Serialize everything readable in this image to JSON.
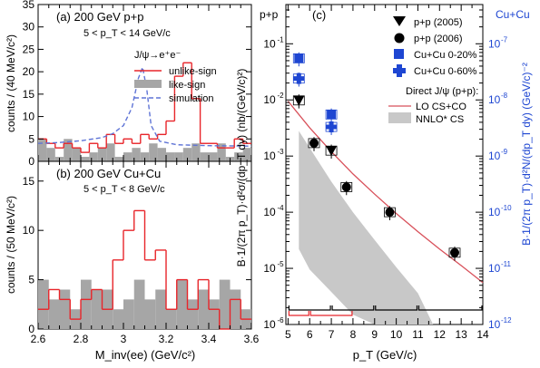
{
  "chart_data": [
    {
      "id": "a",
      "type": "bar",
      "panel_label": "(a) 200 GeV p+p",
      "subtitle": "5 < p_T < 14 GeV/c",
      "legend_title": "J/ψ→e⁺e⁻",
      "ylabel": "counts / (40 MeV/c²)",
      "xlim": [
        2.6,
        3.6
      ],
      "ylim": [
        0,
        35
      ],
      "yticks": [
        0,
        5,
        10,
        15,
        20,
        25,
        30,
        35
      ],
      "series": [
        {
          "name": "unlike-sign",
          "color": "#e8252a",
          "style": "step",
          "bin_edges_start": 2.6,
          "bin_width": 0.04,
          "values": [
            5,
            4,
            3,
            4,
            3,
            2,
            4,
            3,
            6,
            4,
            5,
            4,
            6,
            5,
            6,
            9,
            19,
            22,
            14,
            4,
            4,
            3,
            3,
            5,
            4
          ]
        },
        {
          "name": "like-sign",
          "color": "#a6a6a6",
          "style": "filled",
          "bin_edges_start": 2.6,
          "bin_width": 0.04,
          "values": [
            5,
            3,
            1,
            5,
            3,
            1,
            2,
            3,
            4,
            1,
            2,
            3,
            2,
            4,
            3,
            2,
            2,
            3,
            4,
            2,
            2,
            4,
            1,
            2,
            3
          ]
        },
        {
          "name": "simulation",
          "color": "#5f74d6",
          "style": "dashed",
          "x": [
            2.6,
            2.7,
            2.8,
            2.9,
            2.95,
            3.0,
            3.04,
            3.07,
            3.09,
            3.11,
            3.13,
            3.17,
            3.25,
            3.4,
            3.6
          ],
          "y": [
            4,
            4.2,
            4.6,
            5.3,
            6.2,
            8,
            12,
            18.5,
            21,
            16,
            8,
            4.5,
            3.7,
            3.5,
            3.4
          ]
        }
      ]
    },
    {
      "id": "b",
      "type": "bar",
      "panel_label": "(b) 200 GeV Cu+Cu",
      "subtitle": "5 < p_T < 8 GeV/c",
      "ylabel": "counts / (50 MeV/c²)",
      "xlabel": "M_inv(ee) (GeV/c²)",
      "xlim": [
        2.6,
        3.6
      ],
      "ylim": [
        0,
        17
      ],
      "yticks": [
        0,
        5,
        10,
        15
      ],
      "xticks": [
        2.6,
        2.8,
        3,
        3.2,
        3.4,
        3.6
      ],
      "series": [
        {
          "name": "unlike-sign",
          "color": "#e8252a",
          "style": "step",
          "bin_edges_start": 2.6,
          "bin_width": 0.05,
          "values": [
            2,
            4,
            3,
            1,
            3,
            4,
            2,
            7,
            10,
            12,
            7,
            8,
            2,
            5,
            2,
            5,
            2,
            0,
            3,
            1
          ]
        },
        {
          "name": "like-sign",
          "color": "#a6a6a6",
          "style": "filled",
          "bin_edges_start": 2.6,
          "bin_width": 0.05,
          "values": [
            5,
            3,
            4,
            2,
            5,
            4,
            4,
            2,
            3,
            5,
            3,
            4,
            2,
            5,
            3,
            4,
            3,
            5,
            4,
            2
          ]
        }
      ]
    },
    {
      "id": "c",
      "type": "scatter",
      "panel_label": "(c)",
      "corner_left": "p+p",
      "corner_right": "Cu+Cu",
      "xlabel": "p_T (GeV/c)",
      "ylabel": "B·1/(2π p_T)·d²σ/(dp_T dy)  (nb/(GeV/c)²)",
      "ylabel_right": "B·1/(2π p_T)·d²N/(dp_T dy)  (GeV/c)⁻²",
      "xlim": [
        4.9,
        14.0
      ],
      "ylim_log": [
        1e-06,
        0.5
      ],
      "xticks": [
        5,
        6,
        7,
        8,
        9,
        10,
        11,
        12,
        13,
        14
      ],
      "yticks_left": [
        "10^-6",
        "10^-5",
        "10^-4",
        "10^-3",
        "10^-2",
        "10^-1"
      ],
      "yticks_right": [
        "10^-12",
        "10^-11",
        "10^-10",
        "10^-9",
        "10^-8",
        "10^-7"
      ],
      "series": [
        {
          "name": "p+p (2005)",
          "marker": "triangle-down",
          "color": "#000000",
          "x": [
            5.5,
            7.0
          ],
          "y": [
            0.0098,
            0.00125
          ]
        },
        {
          "name": "p+p (2006)",
          "marker": "circle",
          "color": "#000000",
          "x": [
            6.2,
            7.7,
            9.7,
            12.7
          ],
          "y": [
            0.0017,
            0.00028,
            0.0001,
            1.9e-05
          ]
        },
        {
          "name": "Cu+Cu 0-20%",
          "marker": "square",
          "color": "#1e46d2",
          "x": [
            5.5,
            7.0
          ],
          "y": [
            0.055,
            0.0055
          ]
        },
        {
          "name": "Cu+Cu 0-60%",
          "marker": "cross",
          "color": "#1e46d2",
          "x": [
            5.5,
            7.0
          ],
          "y": [
            0.024,
            0.0033
          ]
        }
      ],
      "theory_title": "Direct J/ψ (p+p):",
      "curve": {
        "name": "LO CS+CO",
        "color": "#d8505a",
        "x": [
          5.0,
          5.5,
          6,
          7,
          8,
          9,
          10,
          11,
          12,
          13,
          14
        ],
        "y": [
          0.0095,
          0.0055,
          0.0032,
          0.0012,
          0.00048,
          0.00021,
          9.5e-05,
          4.5e-05,
          2.2e-05,
          1.12e-05,
          5.6e-06
        ]
      },
      "band": {
        "name": "NNLO* CS",
        "color": "#c8c8c8",
        "x": [
          5.5,
          6,
          7,
          8,
          9,
          10,
          11,
          11.7
        ],
        "upper": [
          0.0028,
          0.0014,
          0.00035,
          0.0001,
          3.2e-05,
          1.05e-05,
          3.6e-06,
          1e-06
        ],
        "lower": [
          2.2e-05,
          9.5e-06,
          3.8e-06,
          1.5e-06,
          1e-06,
          1e-06,
          1e-06,
          1e-06
        ]
      }
    }
  ]
}
